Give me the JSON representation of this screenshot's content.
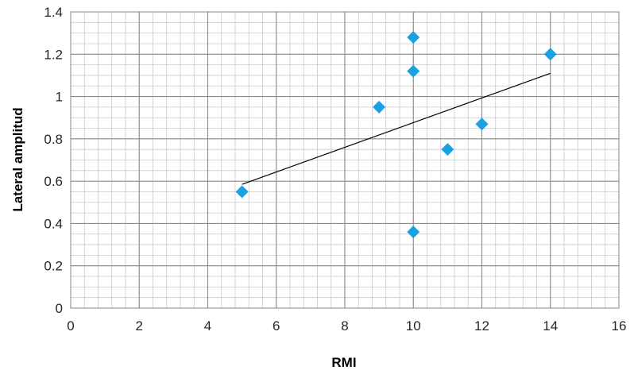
{
  "chart_data": {
    "type": "scatter",
    "title": "",
    "xlabel": "RMI",
    "ylabel": "Lateral amplitud",
    "xlim": [
      0,
      16
    ],
    "ylim": [
      0,
      1.4
    ],
    "x_major_ticks": [
      "0",
      "2",
      "4",
      "6",
      "8",
      "10",
      "12",
      "14",
      "16"
    ],
    "y_major_ticks": [
      "0",
      "0.2",
      "0.4",
      "0.6",
      "0.8",
      "1",
      "1.2",
      "1.4"
    ],
    "x_minor_step": 0.4,
    "y_minor_step": 0.05,
    "grid": true,
    "legend": "none",
    "series": [
      {
        "marker": "diamond",
        "color": "#1ba1e2",
        "points": [
          {
            "x": 5,
            "y": 0.55
          },
          {
            "x": 9,
            "y": 0.95
          },
          {
            "x": 10,
            "y": 1.28
          },
          {
            "x": 10,
            "y": 1.12
          },
          {
            "x": 10,
            "y": 0.36
          },
          {
            "x": 11,
            "y": 0.75
          },
          {
            "x": 12,
            "y": 0.87
          },
          {
            "x": 14,
            "y": 1.2
          }
        ]
      }
    ],
    "trendline": {
      "type": "linear",
      "color": "#000000",
      "x": [
        5,
        14
      ],
      "y": [
        0.585,
        1.11
      ]
    }
  }
}
